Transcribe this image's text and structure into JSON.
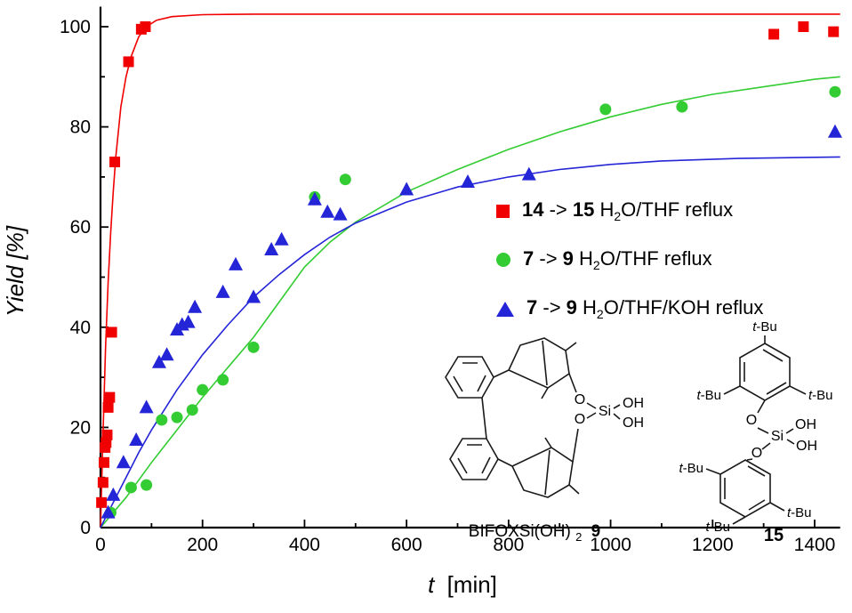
{
  "figure": {
    "background": "#ffffff"
  },
  "chart_data": {
    "type": "scatter",
    "title": "",
    "xlabel": "t [min]",
    "xlabel_italic": "t",
    "xlabel_rest": "[min]",
    "ylabel": "Yield [%]",
    "xlim": [
      0,
      1450
    ],
    "ylim": [
      0,
      104
    ],
    "x_major_ticks": [
      0,
      200,
      400,
      600,
      800,
      1000,
      1200,
      1400
    ],
    "x_minor_step": 100,
    "y_major_ticks": [
      0,
      20,
      40,
      60,
      80,
      100
    ],
    "y_minor_step": 10,
    "grid": false,
    "legend_position": "center-right",
    "series": [
      {
        "name": "14 -> 15 H2O/THF reflux",
        "marker": "square",
        "color": "#f00000",
        "points": [
          [
            2,
            5
          ],
          [
            5,
            9
          ],
          [
            7,
            13
          ],
          [
            9,
            16
          ],
          [
            11,
            17
          ],
          [
            13,
            18.5
          ],
          [
            15,
            24
          ],
          [
            18,
            26
          ],
          [
            22,
            39
          ],
          [
            28,
            73
          ],
          [
            55,
            93
          ],
          [
            80,
            99.5
          ],
          [
            88,
            100
          ],
          [
            1320,
            98.5
          ],
          [
            1378,
            100
          ],
          [
            1437,
            99
          ]
        ],
        "fit_curve": [
          [
            0,
            0
          ],
          [
            5,
            19
          ],
          [
            10,
            36
          ],
          [
            15,
            49
          ],
          [
            20,
            59
          ],
          [
            25,
            67
          ],
          [
            30,
            74
          ],
          [
            40,
            84
          ],
          [
            50,
            90
          ],
          [
            60,
            94
          ],
          [
            75,
            98
          ],
          [
            90,
            100
          ],
          [
            110,
            101.3
          ],
          [
            140,
            102
          ],
          [
            200,
            102.4
          ],
          [
            300,
            102.5
          ],
          [
            600,
            102.5
          ],
          [
            1000,
            102.5
          ],
          [
            1450,
            102.5
          ]
        ]
      },
      {
        "name": "7 -> 9 H2O/THF reflux",
        "marker": "circle",
        "color": "#33cc33",
        "points": [
          [
            20,
            3
          ],
          [
            60,
            8
          ],
          [
            90,
            8.5
          ],
          [
            120,
            21.5
          ],
          [
            150,
            22
          ],
          [
            180,
            23.5
          ],
          [
            200,
            27.5
          ],
          [
            240,
            29.5
          ],
          [
            300,
            36
          ],
          [
            420,
            66
          ],
          [
            480,
            69.5
          ],
          [
            990,
            83.5
          ],
          [
            1140,
            84
          ],
          [
            1440,
            87
          ]
        ],
        "fit_curve": [
          [
            0,
            0
          ],
          [
            50,
            6
          ],
          [
            100,
            13
          ],
          [
            150,
            19.5
          ],
          [
            200,
            26
          ],
          [
            250,
            32
          ],
          [
            300,
            38
          ],
          [
            350,
            45
          ],
          [
            400,
            52
          ],
          [
            450,
            57
          ],
          [
            500,
            61
          ],
          [
            600,
            67
          ],
          [
            700,
            71.5
          ],
          [
            800,
            75.5
          ],
          [
            900,
            79
          ],
          [
            1000,
            82
          ],
          [
            1100,
            84.5
          ],
          [
            1200,
            86.5
          ],
          [
            1300,
            88
          ],
          [
            1400,
            89.5
          ],
          [
            1450,
            90
          ]
        ]
      },
      {
        "name": "7 -> 9 H2O/THF/KOH reflux",
        "marker": "triangle",
        "color": "#2525d8",
        "points": [
          [
            15,
            3
          ],
          [
            25,
            6.5
          ],
          [
            45,
            13
          ],
          [
            70,
            17.5
          ],
          [
            90,
            24
          ],
          [
            115,
            33
          ],
          [
            130,
            34.5
          ],
          [
            150,
            39.5
          ],
          [
            160,
            40.5
          ],
          [
            172,
            41
          ],
          [
            185,
            44
          ],
          [
            240,
            47
          ],
          [
            265,
            52.5
          ],
          [
            300,
            46
          ],
          [
            335,
            55.5
          ],
          [
            355,
            57.5
          ],
          [
            420,
            65.5
          ],
          [
            445,
            63
          ],
          [
            470,
            62.5
          ],
          [
            600,
            67.5
          ],
          [
            720,
            69
          ],
          [
            840,
            70.5
          ],
          [
            1440,
            79
          ]
        ],
        "fit_curve": [
          [
            0,
            0
          ],
          [
            25,
            5
          ],
          [
            50,
            10
          ],
          [
            75,
            15
          ],
          [
            100,
            19.5
          ],
          [
            150,
            27.5
          ],
          [
            200,
            34.5
          ],
          [
            250,
            40.5
          ],
          [
            300,
            46
          ],
          [
            350,
            50.5
          ],
          [
            400,
            54.5
          ],
          [
            450,
            58
          ],
          [
            500,
            60.8
          ],
          [
            600,
            65
          ],
          [
            700,
            68
          ],
          [
            800,
            70
          ],
          [
            900,
            71.5
          ],
          [
            1000,
            72.5
          ],
          [
            1100,
            73.2
          ],
          [
            1250,
            73.7
          ],
          [
            1450,
            74
          ]
        ]
      }
    ]
  },
  "legend": {
    "items": [
      {
        "segments": [
          {
            "t": "14",
            "b": true
          },
          {
            "t": " -> "
          },
          {
            "t": "15",
            "b": true
          },
          {
            "t": " H"
          },
          {
            "t": "2",
            "sub": true
          },
          {
            "t": "O/THF reflux"
          }
        ]
      },
      {
        "segments": [
          {
            "t": "7",
            "b": true
          },
          {
            "t": " -> "
          },
          {
            "t": "9",
            "b": true
          },
          {
            "t": " H"
          },
          {
            "t": "2",
            "sub": true
          },
          {
            "t": "O/THF reflux"
          }
        ]
      },
      {
        "segments": [
          {
            "t": "7",
            "b": true
          },
          {
            "t": " -> "
          },
          {
            "t": "9",
            "b": true
          },
          {
            "t": " H"
          },
          {
            "t": "2",
            "sub": true
          },
          {
            "t": "O/THF/KOH reflux"
          }
        ]
      }
    ]
  },
  "structures": {
    "tbu_t": "t",
    "tbu_rest": "-Bu",
    "o": "O",
    "si": "Si",
    "oh": "OH",
    "s9": {
      "caption": "BIFOXSi(OH)",
      "caption_sub": "2",
      "caption_num": "9"
    },
    "s15": {
      "num": "15"
    }
  }
}
